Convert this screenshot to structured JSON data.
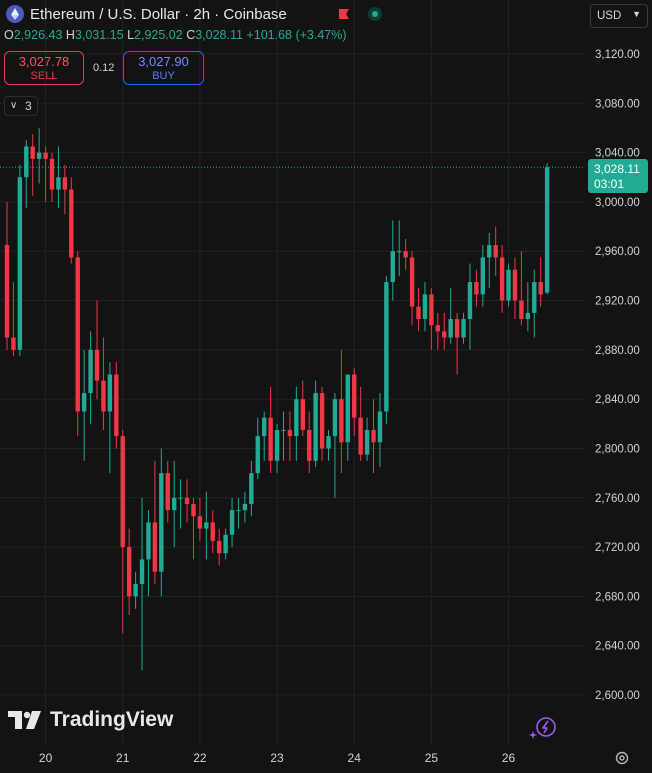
{
  "header": {
    "title": "Ethereum / U.S. Dollar · 2h · Coinbase",
    "ohlc": {
      "o_label": "O",
      "o_value": "2,926.43",
      "h_label": "H",
      "h_value": "3,031.15",
      "l_label": "L",
      "l_value": "2,925.02",
      "c_label": "C",
      "c_value": "3,028.11",
      "change": "+101.68 (+3.47%)"
    },
    "icons": [
      "ethereum-icon",
      "flag-icon",
      "status-dot-icon"
    ]
  },
  "trade": {
    "sell_price": "3,027.78",
    "sell_label": "SELL",
    "spread": "0.12",
    "buy_price": "3,027.90",
    "buy_label": "BUY"
  },
  "indicators_toggle": {
    "count": "3"
  },
  "currency": "USD",
  "last_price_tag": {
    "price": "3,028.11",
    "countdown": "03:01"
  },
  "branding": {
    "name": "TradingView"
  },
  "colors": {
    "up": "#22ab94",
    "down": "#f23645",
    "background": "#131313",
    "grid": "#1f2229"
  },
  "chart_data": {
    "type": "candlestick",
    "title": "Ethereum / U.S. Dollar · 2h · Coinbase",
    "y_ticks": [
      3120,
      3080,
      3040,
      3000,
      2960,
      2920,
      2880,
      2840,
      2800,
      2760,
      2720,
      2680,
      2640,
      2600
    ],
    "y_tick_labels": [
      "3,120.00",
      "3,080.00",
      "3,040.00",
      "3,000.00",
      "2,960.00",
      "2,920.00",
      "2,880.00",
      "2,840.00",
      "2,800.00",
      "2,760.00",
      "2,720.00",
      "2,680.00",
      "2,640.00",
      "2,600.00"
    ],
    "ylim": [
      2586,
      3152
    ],
    "x_labels": [
      {
        "label": "20",
        "index": 6
      },
      {
        "label": "21",
        "index": 18
      },
      {
        "label": "22",
        "index": 30
      },
      {
        "label": "23",
        "index": 42
      },
      {
        "label": "24",
        "index": 54
      },
      {
        "label": "25",
        "index": 66
      },
      {
        "label": "26",
        "index": 78
      }
    ],
    "last_price": 3028.11,
    "candles": [
      [
        2965,
        3000,
        2880,
        2890
      ],
      [
        2890,
        2935,
        2875,
        2880
      ],
      [
        2880,
        3030,
        2875,
        3020
      ],
      [
        3020,
        3050,
        2995,
        3045
      ],
      [
        3045,
        3055,
        3005,
        3035
      ],
      [
        3035,
        3060,
        3015,
        3040
      ],
      [
        3040,
        3045,
        3000,
        3035
      ],
      [
        3035,
        3040,
        3000,
        3010
      ],
      [
        3010,
        3045,
        2995,
        3020
      ],
      [
        3020,
        3030,
        2990,
        3010
      ],
      [
        3010,
        3020,
        2950,
        2955
      ],
      [
        2955,
        2960,
        2810,
        2830
      ],
      [
        2830,
        2880,
        2790,
        2845
      ],
      [
        2845,
        2895,
        2820,
        2880
      ],
      [
        2880,
        2920,
        2840,
        2855
      ],
      [
        2855,
        2890,
        2815,
        2830
      ],
      [
        2830,
        2870,
        2780,
        2860
      ],
      [
        2860,
        2870,
        2800,
        2810
      ],
      [
        2810,
        2815,
        2650,
        2720
      ],
      [
        2720,
        2735,
        2665,
        2680
      ],
      [
        2680,
        2700,
        2670,
        2690
      ],
      [
        2690,
        2760,
        2620,
        2710
      ],
      [
        2710,
        2750,
        2680,
        2740
      ],
      [
        2740,
        2790,
        2690,
        2700
      ],
      [
        2700,
        2800,
        2680,
        2780
      ],
      [
        2780,
        2790,
        2740,
        2750
      ],
      [
        2750,
        2790,
        2720,
        2760
      ],
      [
        2760,
        2775,
        2735,
        2760
      ],
      [
        2760,
        2775,
        2740,
        2755
      ],
      [
        2755,
        2760,
        2710,
        2745
      ],
      [
        2745,
        2760,
        2725,
        2735
      ],
      [
        2735,
        2765,
        2710,
        2740
      ],
      [
        2740,
        2750,
        2715,
        2725
      ],
      [
        2725,
        2735,
        2705,
        2715
      ],
      [
        2715,
        2735,
        2710,
        2730
      ],
      [
        2730,
        2760,
        2720,
        2750
      ],
      [
        2750,
        2760,
        2735,
        2750
      ],
      [
        2750,
        2765,
        2740,
        2755
      ],
      [
        2755,
        2790,
        2745,
        2780
      ],
      [
        2780,
        2825,
        2775,
        2810
      ],
      [
        2810,
        2830,
        2790,
        2825
      ],
      [
        2825,
        2850,
        2780,
        2790
      ],
      [
        2790,
        2820,
        2780,
        2815
      ],
      [
        2815,
        2830,
        2790,
        2815
      ],
      [
        2815,
        2830,
        2790,
        2810
      ],
      [
        2810,
        2850,
        2790,
        2840
      ],
      [
        2840,
        2855,
        2810,
        2815
      ],
      [
        2815,
        2830,
        2780,
        2790
      ],
      [
        2790,
        2855,
        2785,
        2845
      ],
      [
        2845,
        2850,
        2790,
        2800
      ],
      [
        2800,
        2815,
        2790,
        2810
      ],
      [
        2810,
        2845,
        2760,
        2840
      ],
      [
        2840,
        2880,
        2780,
        2805
      ],
      [
        2805,
        2860,
        2790,
        2860
      ],
      [
        2860,
        2865,
        2810,
        2825
      ],
      [
        2825,
        2850,
        2790,
        2795
      ],
      [
        2795,
        2825,
        2790,
        2815
      ],
      [
        2815,
        2840,
        2780,
        2805
      ],
      [
        2805,
        2845,
        2785,
        2830
      ],
      [
        2830,
        2940,
        2820,
        2935
      ],
      [
        2935,
        2985,
        2920,
        2960
      ],
      [
        2960,
        2985,
        2940,
        2960
      ],
      [
        2960,
        2970,
        2945,
        2955
      ],
      [
        2955,
        2960,
        2900,
        2915
      ],
      [
        2915,
        2930,
        2895,
        2905
      ],
      [
        2905,
        2935,
        2895,
        2925
      ],
      [
        2925,
        2930,
        2880,
        2900
      ],
      [
        2900,
        2910,
        2880,
        2895
      ],
      [
        2895,
        2910,
        2880,
        2890
      ],
      [
        2890,
        2930,
        2885,
        2905
      ],
      [
        2905,
        2910,
        2860,
        2890
      ],
      [
        2890,
        2910,
        2885,
        2905
      ],
      [
        2905,
        2950,
        2880,
        2935
      ],
      [
        2935,
        2945,
        2915,
        2925
      ],
      [
        2925,
        2965,
        2915,
        2955
      ],
      [
        2955,
        2975,
        2930,
        2965
      ],
      [
        2965,
        2980,
        2940,
        2955
      ],
      [
        2955,
        2965,
        2910,
        2920
      ],
      [
        2920,
        2950,
        2915,
        2945
      ],
      [
        2945,
        2955,
        2905,
        2920
      ],
      [
        2920,
        2960,
        2900,
        2905
      ],
      [
        2905,
        2935,
        2895,
        2910
      ],
      [
        2910,
        2945,
        2890,
        2935
      ],
      [
        2935,
        2955,
        2915,
        2925
      ],
      [
        2926.43,
        3031.15,
        2925.02,
        3028.11
      ]
    ]
  }
}
